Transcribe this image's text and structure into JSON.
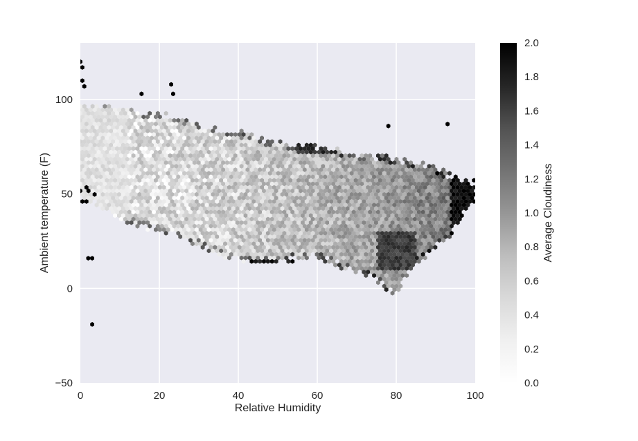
{
  "chart_data": {
    "type": "hexbin",
    "title": "",
    "xlabel": "Relative Humidity",
    "ylabel": "Ambient temperature (F)",
    "xlim": [
      0,
      100
    ],
    "ylim": [
      -50,
      130
    ],
    "x_ticks": [
      0,
      20,
      40,
      60,
      80,
      100
    ],
    "y_ticks": [
      -50,
      0,
      50,
      100
    ],
    "x_tick_labels": [
      "0",
      "20",
      "40",
      "60",
      "80",
      "100"
    ],
    "y_tick_labels": [
      "−50",
      "0",
      "50",
      "100"
    ],
    "grid": true,
    "style": "seaborn-darkgrid",
    "colormap": "Greys",
    "colorbar": {
      "label": "Average Cloudiness",
      "vmin": 0.0,
      "vmax": 2.0,
      "ticks": [
        0.0,
        0.2,
        0.4,
        0.6,
        0.8,
        1.0,
        1.2,
        1.4,
        1.6,
        1.8,
        2.0
      ],
      "tick_labels": [
        "0.0",
        "0.2",
        "0.4",
        "0.6",
        "0.8",
        "1.0",
        "1.2",
        "1.4",
        "1.6",
        "1.8",
        "2.0"
      ]
    },
    "density_region": {
      "description": "hexagon bins covering the main data cloud",
      "top_edge": [
        [
          7,
          98
        ],
        [
          10,
          95
        ],
        [
          20,
          94
        ],
        [
          30,
          88
        ],
        [
          40,
          84
        ],
        [
          50,
          78
        ],
        [
          60,
          77
        ],
        [
          70,
          72
        ],
        [
          80,
          70
        ],
        [
          90,
          65
        ],
        [
          95,
          60
        ],
        [
          99,
          58
        ]
      ],
      "bottom_edge": [
        [
          3,
          45
        ],
        [
          10,
          36
        ],
        [
          20,
          29
        ],
        [
          30,
          22
        ],
        [
          40,
          13
        ],
        [
          50,
          13
        ],
        [
          60,
          16
        ],
        [
          70,
          7
        ],
        [
          75,
          3
        ],
        [
          80,
          -5
        ],
        [
          85,
          12
        ],
        [
          90,
          20
        ],
        [
          95,
          30
        ],
        [
          99,
          45
        ]
      ],
      "dark_regions": [
        {
          "x": [
            94,
            100
          ],
          "y": [
            20,
            65
          ],
          "value": 1.9
        },
        {
          "x": [
            55,
            65
          ],
          "y": [
            72,
            77
          ],
          "value": 1.6
        },
        {
          "x": [
            75,
            85
          ],
          "y": [
            10,
            30
          ],
          "value": 1.5
        },
        {
          "x": [
            42,
            55
          ],
          "y": [
            12,
            15
          ],
          "value": 1.8
        }
      ],
      "light_regions": [
        {
          "x": [
            0,
            12
          ],
          "y": [
            40,
            95
          ],
          "value": 0.1
        }
      ]
    },
    "outlier_bins": [
      {
        "x": 0,
        "y": 120,
        "value": 2.0
      },
      {
        "x": 0.5,
        "y": 117,
        "value": 2.0
      },
      {
        "x": 0.5,
        "y": 110,
        "value": 2.0
      },
      {
        "x": 1,
        "y": 107,
        "value": 2.0
      },
      {
        "x": 15.5,
        "y": 103,
        "value": 2.0
      },
      {
        "x": 23,
        "y": 108,
        "value": 2.0
      },
      {
        "x": 23.5,
        "y": 103,
        "value": 2.0
      },
      {
        "x": 78,
        "y": 86,
        "value": 2.0
      },
      {
        "x": 93,
        "y": 87,
        "value": 2.0
      },
      {
        "x": 2,
        "y": 16,
        "value": 2.0
      },
      {
        "x": 3,
        "y": 16,
        "value": 2.0
      },
      {
        "x": 3,
        "y": -19,
        "value": 2.0
      }
    ]
  }
}
